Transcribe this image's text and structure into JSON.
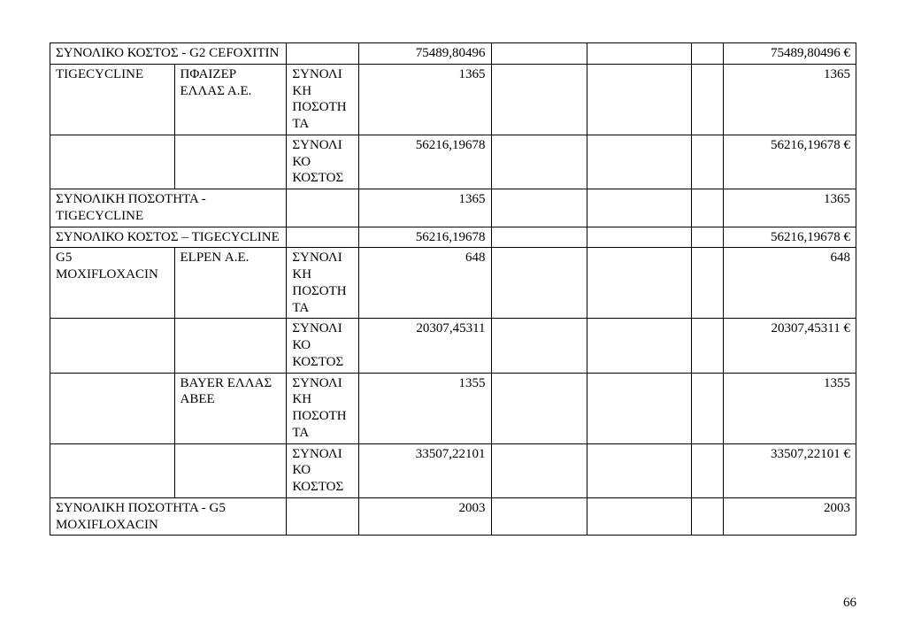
{
  "rows": {
    "r1": {
      "c1": "ΣΥΝΟΛΙΚΟ ΚΟΣΤΟΣ - G2 CEFOXITIN",
      "c4": "75489,80496",
      "c8": "75489,80496 €"
    },
    "r2": {
      "c1": "TIGECYCLINE",
      "c2": "ΠΦΑΙΖΕΡ ΕΛΛΑΣ Α.Ε.",
      "c3": "ΣΥΝΟΛΙ\nΚΗ\nΠΟΣΟΤΗ\nΤΑ",
      "c4": "1365",
      "c8": "1365"
    },
    "r3": {
      "c3": "ΣΥΝΟΛΙ\nΚΟ\nΚΟΣΤΟΣ",
      "c4": "56216,19678",
      "c8": "56216,19678 €"
    },
    "r4": {
      "c1": "ΣΥΝΟΛΙΚΗ ΠΟΣΟΤΗΤΑ - TIGECYCLINE",
      "c4": "1365",
      "c8": "1365"
    },
    "r5": {
      "c1": "ΣΥΝΟΛΙΚΟ ΚΟΣΤΟΣ – TIGECYCLINE",
      "c4": "56216,19678",
      "c8": "56216,19678 €"
    },
    "r6": {
      "c1": "G5 MOXIFLOXACIN",
      "c2": "ELPEN Α.Ε.",
      "c3": "ΣΥΝΟΛΙ\nΚΗ\nΠΟΣΟΤΗ\nΤΑ",
      "c4": "648",
      "c8": "648"
    },
    "r7": {
      "c3": "ΣΥΝΟΛΙ\nΚΟ\nΚΟΣΤΟΣ",
      "c4": "20307,45311",
      "c8": "20307,45311 €"
    },
    "r8": {
      "c2": "BAYER ΕΛΛΑΣ ΑΒΕΕ",
      "c3": "ΣΥΝΟΛΙ\nΚΗ\nΠΟΣΟΤΗ\nΤΑ",
      "c4": "1355",
      "c8": "1355"
    },
    "r9": {
      "c3": "ΣΥΝΟΛΙ\nΚΟ\nΚΟΣΤΟΣ",
      "c4": "33507,22101",
      "c8": "33507,22101 €"
    },
    "r10": {
      "c1": "ΣΥΝΟΛΙΚΗ ΠΟΣΟΤΗΤΑ - G5 MOXIFLOXACIN",
      "c4": "2003",
      "c8": "2003"
    }
  },
  "page_number": "66"
}
